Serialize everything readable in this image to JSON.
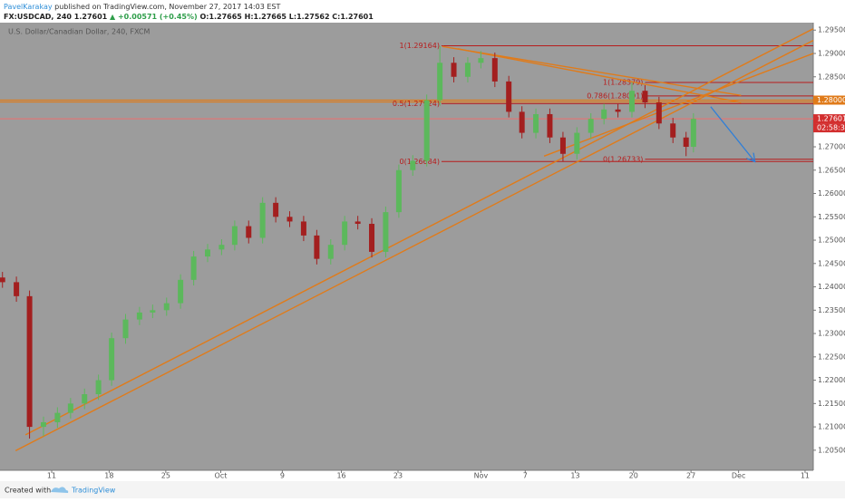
{
  "header": {
    "author": "PavelKarakay",
    "published": "published on TradingView.com, November 27, 2017 14:03 EST",
    "symbol": "FX:USDCAD, 240",
    "last": "1.27601",
    "change": "▲ +0.00571 (+0.45%)",
    "ohlc": "O:1.27665 H:1.27665 L:1.27562 C:1.27601"
  },
  "footer": {
    "created": "Created with",
    "brand": "TradingView"
  },
  "chart_data": {
    "type": "candlestick",
    "title": "U.S. Dollar/Canadian Dollar, 240, FXCM",
    "up_color": "#5cb85c",
    "down_color": "#a31f1f",
    "x": [
      -6,
      -4.3,
      -2.7,
      -1,
      0.7,
      2.3,
      4,
      5.7,
      7.3,
      9,
      10.7,
      12.3,
      14,
      15.7,
      17.3,
      19,
      20.7,
      22.3,
      24,
      25.7,
      27.3,
      29,
      30.7,
      32.3,
      34,
      35.7,
      37.3,
      39,
      40.7,
      42.3,
      44,
      45.7,
      47.3,
      49,
      50.7,
      52.3,
      54,
      55.7,
      57.3,
      59,
      60.7,
      62.3,
      64,
      65.7,
      67.3,
      69,
      70.7,
      72.3,
      74,
      75.7,
      77.3,
      78.2
    ],
    "open": [
      1.242,
      1.241,
      1.238,
      1.21,
      1.211,
      1.213,
      1.215,
      1.217,
      1.22,
      1.229,
      1.233,
      1.2345,
      1.235,
      1.2365,
      1.2415,
      1.2465,
      1.248,
      1.249,
      1.253,
      1.2505,
      1.258,
      1.255,
      1.254,
      1.251,
      1.246,
      1.249,
      1.254,
      1.2535,
      1.2475,
      1.256,
      1.265,
      1.267,
      1.28,
      1.288,
      1.285,
      1.288,
      1.289,
      1.284,
      1.2775,
      1.273,
      1.277,
      1.272,
      1.2685,
      1.273,
      1.276,
      1.278,
      1.2775,
      1.282,
      1.2795,
      1.275,
      1.272,
      1.27
    ],
    "high": [
      1.2432,
      1.2422,
      1.2392,
      1.2122,
      1.2142,
      1.2162,
      1.2182,
      1.2212,
      1.2302,
      1.2342,
      1.2357,
      1.2362,
      1.2377,
      1.2427,
      1.2477,
      1.2492,
      1.2502,
      1.2542,
      1.2542,
      1.2592,
      1.2592,
      1.2562,
      1.2552,
      1.2522,
      1.2502,
      1.2552,
      1.2552,
      1.2547,
      1.2572,
      1.2662,
      1.2682,
      1.2812,
      1.2916,
      1.2892,
      1.2892,
      1.2905,
      1.2902,
      1.2852,
      1.2787,
      1.2782,
      1.2782,
      1.2732,
      1.2742,
      1.2772,
      1.2792,
      1.2792,
      1.2838,
      1.2832,
      1.2807,
      1.2762,
      1.2732,
      1.2772
    ],
    "low": [
      1.2398,
      1.2368,
      1.2075,
      1.208,
      1.2098,
      1.2118,
      1.2138,
      1.2158,
      1.2188,
      1.2278,
      1.2318,
      1.2333,
      1.2338,
      1.2353,
      1.2403,
      1.2453,
      1.2468,
      1.2478,
      1.2493,
      1.2493,
      1.2538,
      1.2528,
      1.2498,
      1.2448,
      1.2448,
      1.2478,
      1.2523,
      1.2463,
      1.2463,
      1.2548,
      1.2638,
      1.2658,
      1.2788,
      1.2838,
      1.2838,
      1.2868,
      1.2828,
      1.2763,
      1.2718,
      1.2718,
      1.2708,
      1.2668,
      1.2673,
      1.2718,
      1.2748,
      1.2763,
      1.2763,
      1.2783,
      1.2738,
      1.2708,
      1.268,
      1.2688
    ],
    "close": [
      1.241,
      1.238,
      1.21,
      1.211,
      1.213,
      1.215,
      1.217,
      1.22,
      1.229,
      1.233,
      1.2345,
      1.235,
      1.2365,
      1.2415,
      1.2465,
      1.248,
      1.249,
      1.253,
      1.2505,
      1.258,
      1.255,
      1.254,
      1.251,
      1.246,
      1.249,
      1.254,
      1.2535,
      1.2475,
      1.256,
      1.265,
      1.267,
      1.28,
      1.288,
      1.285,
      1.288,
      1.289,
      1.284,
      1.2775,
      1.273,
      1.277,
      1.272,
      1.2685,
      1.273,
      1.276,
      1.278,
      1.2775,
      1.282,
      1.2795,
      1.275,
      1.272,
      1.27,
      1.276
    ],
    "xlim": [
      -6.3,
      92.8
    ],
    "xticks": [
      {
        "value": 0,
        "label": "11"
      },
      {
        "value": 7,
        "label": "18"
      },
      {
        "value": 13.9,
        "label": "25"
      },
      {
        "value": 20.6,
        "label": "Oct"
      },
      {
        "value": 28.1,
        "label": "9"
      },
      {
        "value": 35.3,
        "label": "16"
      },
      {
        "value": 42.2,
        "label": "23"
      },
      {
        "value": 52.3,
        "label": "Nov"
      },
      {
        "value": 57.7,
        "label": "7"
      },
      {
        "value": 63.8,
        "label": "13"
      },
      {
        "value": 70.9,
        "label": "20"
      },
      {
        "value": 77.9,
        "label": "27"
      },
      {
        "value": 83.7,
        "label": "Dec"
      },
      {
        "value": 91.8,
        "label": "11"
      }
    ],
    "ylim": [
      1.2007,
      1.2966
    ],
    "yticks": [
      {
        "value": 1.205,
        "label": "1.20500"
      },
      {
        "value": 1.21,
        "label": "1.21000"
      },
      {
        "value": 1.215,
        "label": "1.21500"
      },
      {
        "value": 1.22,
        "label": "1.22000"
      },
      {
        "value": 1.225,
        "label": "1.22500"
      },
      {
        "value": 1.23,
        "label": "1.23000"
      },
      {
        "value": 1.235,
        "label": "1.23500"
      },
      {
        "value": 1.24,
        "label": "1.24000"
      },
      {
        "value": 1.245,
        "label": "1.24500"
      },
      {
        "value": 1.25,
        "label": "1.25000"
      },
      {
        "value": 1.255,
        "label": "1.25500"
      },
      {
        "value": 1.26,
        "label": "1.26000"
      },
      {
        "value": 1.265,
        "label": "1.26500"
      },
      {
        "value": 1.27,
        "label": "1.27000"
      },
      {
        "value": 1.275,
        "label": "1.27500"
      },
      {
        "value": 1.28,
        "label": "1.28000"
      },
      {
        "value": 1.285,
        "label": "1.28500"
      },
      {
        "value": 1.29,
        "label": "1.29000"
      },
      {
        "value": 1.295,
        "label": "1.29500"
      }
    ],
    "grid": false,
    "hlines": [
      {
        "value": 1.28,
        "color": "#e07b1a"
      },
      {
        "value": 1.2796,
        "color": "#e07b1a"
      },
      {
        "value": 1.27601,
        "color": "#e57373"
      }
    ],
    "trendlines": [
      {
        "x": [
          -3.2,
          92.8
        ],
        "y": [
          1.2083,
          1.2953
        ],
        "color": "#e07b1a"
      },
      {
        "x": [
          -4.4,
          92.8
        ],
        "y": [
          1.2049,
          1.2928
        ],
        "color": "#e07b1a"
      },
      {
        "x": [
          60,
          92.8
        ],
        "y": [
          1.268,
          1.29
        ],
        "color": "#e07b1a"
      },
      {
        "x": [
          47.6,
          84
        ],
        "y": [
          1.2915,
          1.281
        ],
        "color": "#e07b1a"
      },
      {
        "x": [
          49.5,
          84
        ],
        "y": [
          1.291,
          1.2795
        ],
        "color": "#e07b1a"
      }
    ],
    "fib_levels": [
      {
        "label": "1(1.29164)",
        "value": 1.29164,
        "x0": 47.5
      },
      {
        "label": "0.5(1.27924)",
        "value": 1.27924,
        "x0": 47.5
      },
      {
        "label": "0(1.26684)",
        "value": 1.26684,
        "x0": 47.5
      },
      {
        "label": "1(1.28379)",
        "value": 1.28379,
        "x0": 72.3
      },
      {
        "label": "0.786(1.28091)",
        "value": 1.28091,
        "x0": 72.3
      },
      {
        "label": "0(1.26733)",
        "value": 1.26733,
        "x0": 72.3
      }
    ],
    "fib_color": "#b71c1c",
    "arrow": {
      "x": [
        80.3,
        85.6
      ],
      "y": [
        1.2786,
        1.267
      ],
      "color": "#2f7fd8"
    },
    "price_labels": [
      {
        "label": "1.28000",
        "value": 1.28,
        "color": "#e07b1a"
      },
      {
        "label": "1.27601",
        "value": 1.27601,
        "color": "#d32f2f"
      }
    ],
    "countdown": "02:58:38"
  }
}
